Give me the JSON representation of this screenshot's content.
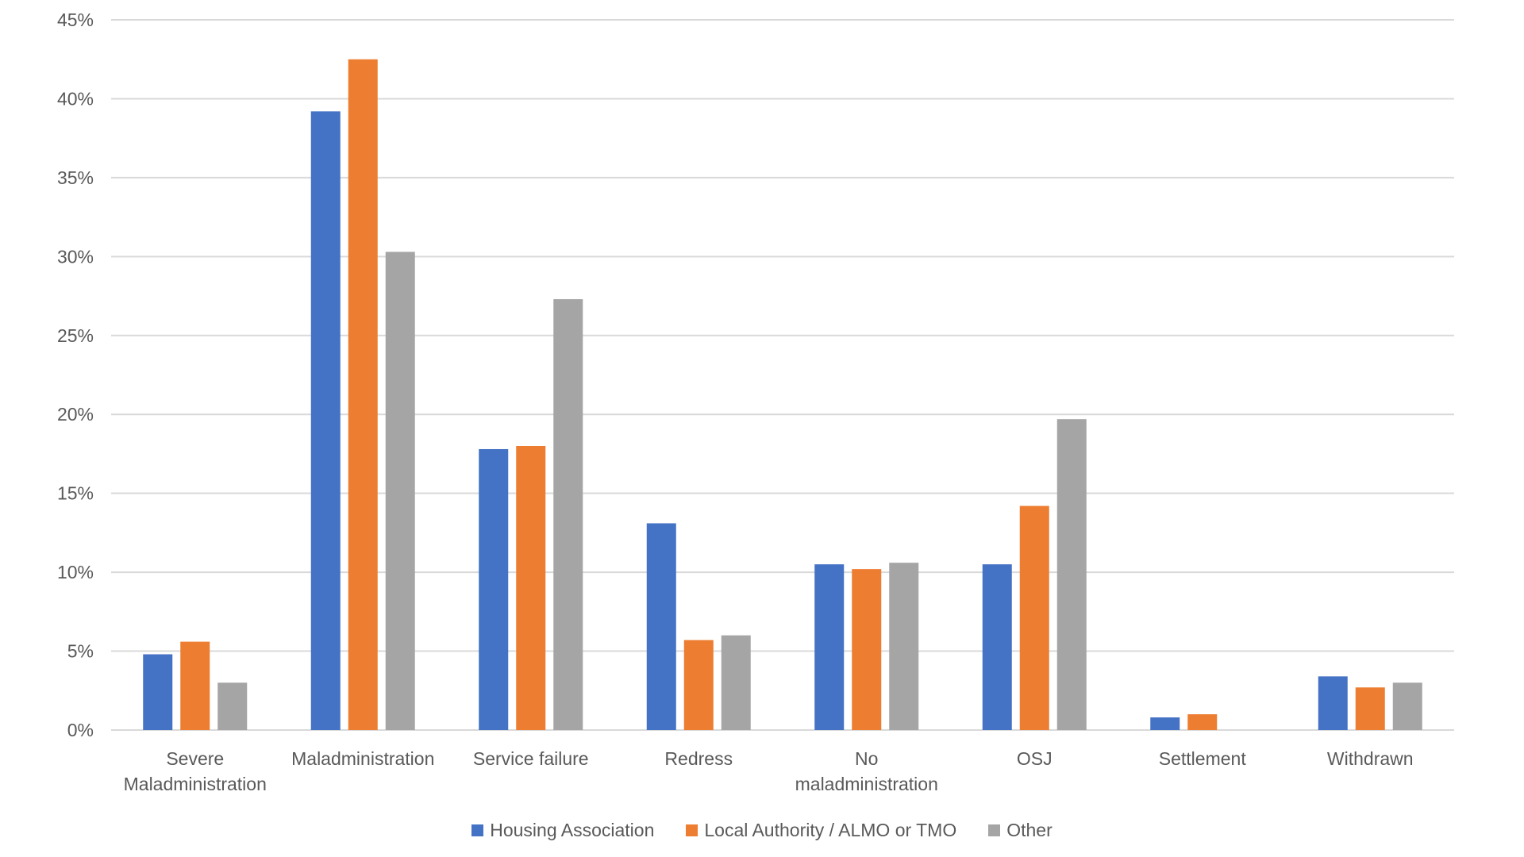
{
  "chart_data": {
    "type": "bar",
    "title": "",
    "xlabel": "",
    "ylabel": "",
    "ylim": [
      0,
      45
    ],
    "y_ticks": [
      "0%",
      "5%",
      "10%",
      "15%",
      "20%",
      "25%",
      "30%",
      "35%",
      "40%",
      "45%"
    ],
    "y_tick_values": [
      0,
      5,
      10,
      15,
      20,
      25,
      30,
      35,
      40,
      45
    ],
    "grid": true,
    "legend_position": "bottom",
    "categories": [
      [
        "Severe",
        "Maladministration"
      ],
      [
        "Maladministration"
      ],
      [
        "Service failure"
      ],
      [
        "Redress"
      ],
      [
        "No",
        "maladministration"
      ],
      [
        "OSJ"
      ],
      [
        "Settlement"
      ],
      [
        "Withdrawn"
      ]
    ],
    "series": [
      {
        "name": "Housing Association",
        "color": "#4472c4",
        "values": [
          4.8,
          39.2,
          17.8,
          13.1,
          10.5,
          10.5,
          0.8,
          3.4
        ]
      },
      {
        "name": "Local Authority / ALMO or TMO",
        "color": "#ed7d31",
        "values": [
          5.6,
          42.5,
          18.0,
          5.7,
          10.2,
          14.2,
          1.0,
          2.7
        ]
      },
      {
        "name": "Other",
        "color": "#a5a5a5",
        "values": [
          3.0,
          30.3,
          27.3,
          6.0,
          10.6,
          19.7,
          0,
          3.0
        ]
      }
    ]
  }
}
